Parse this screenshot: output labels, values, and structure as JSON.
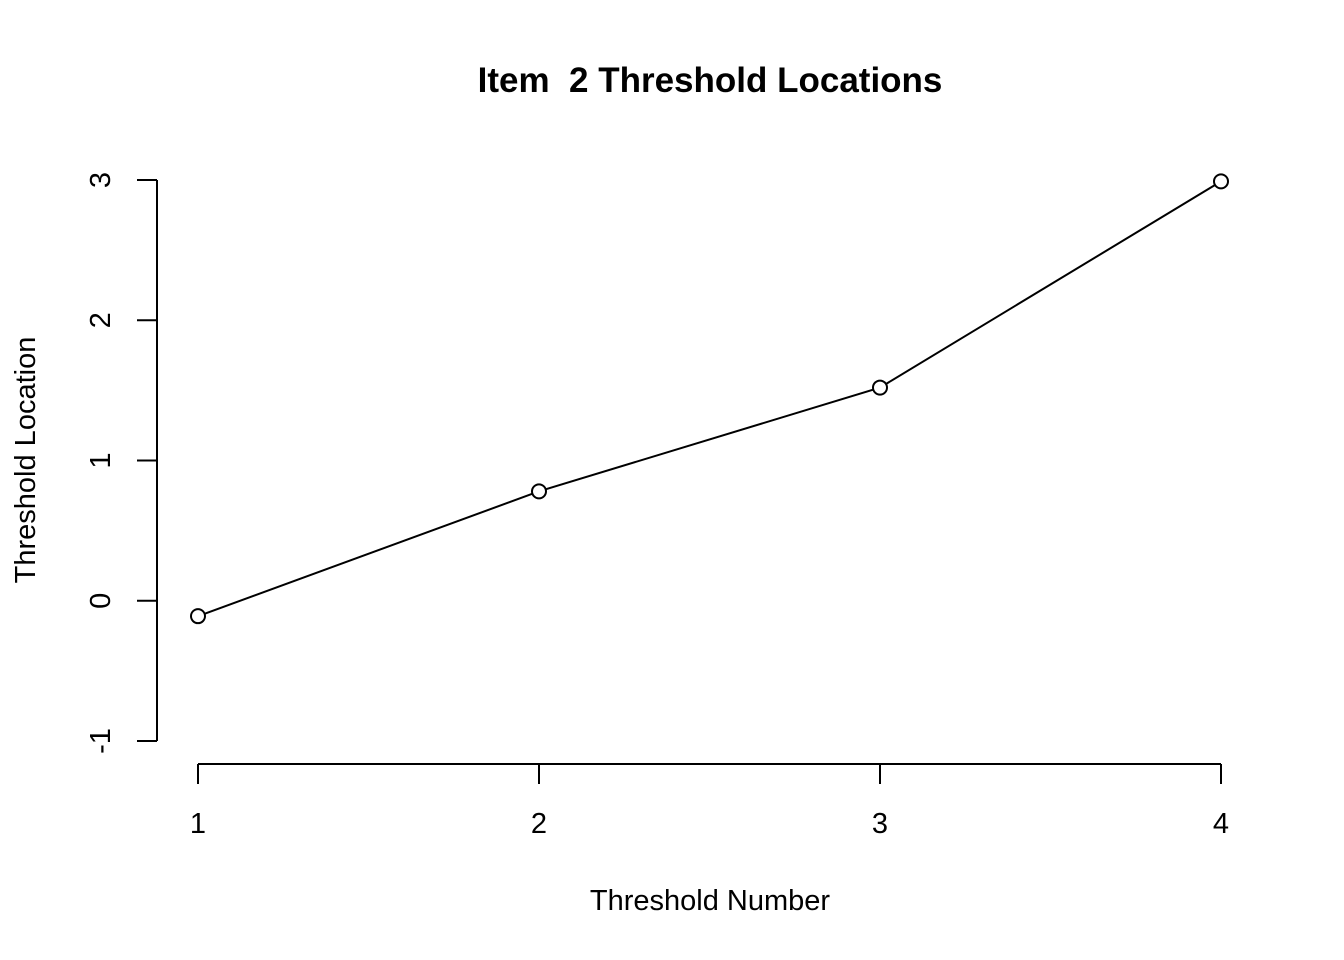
{
  "chart_data": {
    "type": "line",
    "title": "Item  2 Threshold Locations",
    "xlabel": "Threshold Number",
    "ylabel": "Threshold Location",
    "x": [
      1,
      2,
      3,
      4
    ],
    "values": [
      -0.11,
      0.78,
      1.52,
      2.99
    ],
    "xticks": [
      "1",
      "2",
      "3",
      "4"
    ],
    "yticks": [
      "-1",
      "0",
      "1",
      "2",
      "3"
    ],
    "xlim": [
      1,
      4
    ],
    "ylim": [
      -1,
      3
    ],
    "grid": false,
    "marker": "open-circle",
    "line_color": "#000000"
  }
}
